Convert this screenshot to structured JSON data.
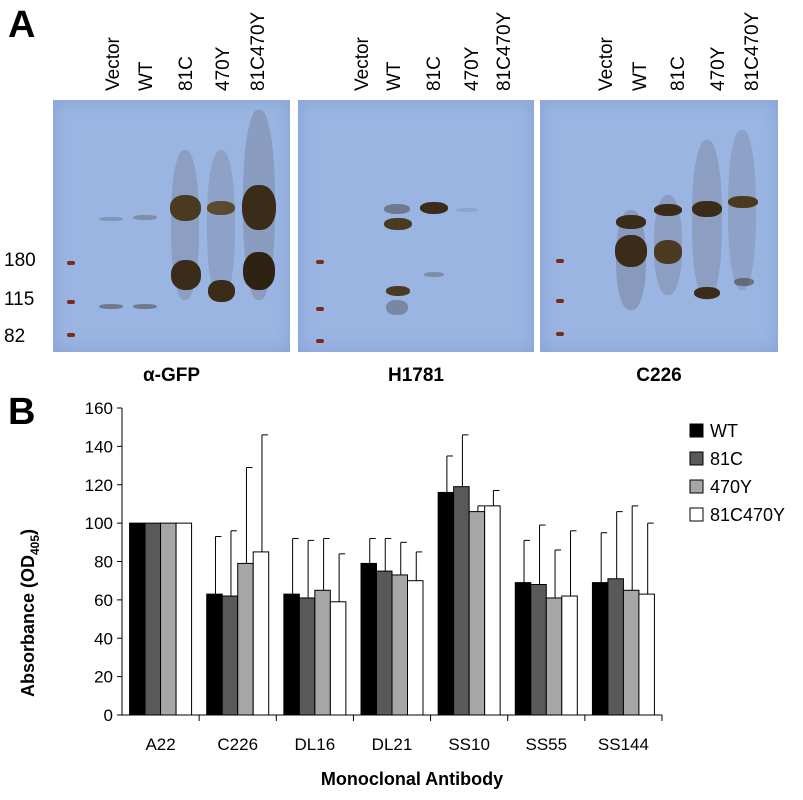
{
  "panel_a": {
    "letter": "A",
    "marker_labels": [
      "180",
      "115",
      "82"
    ],
    "blots": [
      {
        "title": "α-GFP",
        "lanes": [
          "Vector",
          "WT",
          "81C",
          "470Y",
          "81C470Y"
        ]
      },
      {
        "title": "H1781",
        "lanes": [
          "Vector",
          "WT",
          "81C",
          "470Y",
          "81C470Y"
        ]
      },
      {
        "title": "C226",
        "lanes": [
          "Vector",
          "WT",
          "81C",
          "470Y",
          "81C470Y"
        ]
      }
    ]
  },
  "panel_b": {
    "letter": "B"
  },
  "chart_data": {
    "type": "bar",
    "xlabel": "Monoclonal Antibody",
    "ylabel": "Absorbance (OD",
    "ylabel_sub": "405",
    "ylabel_close": ")",
    "ylim": [
      0,
      160
    ],
    "yticks": [
      0,
      20,
      40,
      60,
      80,
      100,
      120,
      140,
      160
    ],
    "categories": [
      "A22",
      "C226",
      "DL16",
      "DL21",
      "SS10",
      "SS55",
      "SS144"
    ],
    "legend_position": "right",
    "series": [
      {
        "name": "WT",
        "color": "#000000",
        "values": [
          100,
          63,
          63,
          79,
          116,
          69,
          69
        ],
        "errors": [
          0,
          30,
          29,
          13,
          19,
          22,
          26
        ]
      },
      {
        "name": "81C",
        "color": "#595959",
        "values": [
          100,
          62,
          61,
          75,
          119,
          68,
          71
        ],
        "errors": [
          0,
          34,
          30,
          17,
          27,
          31,
          35
        ]
      },
      {
        "name": "470Y",
        "color": "#a6a6a6",
        "values": [
          100,
          79,
          65,
          73,
          106,
          61,
          65
        ],
        "errors": [
          0,
          50,
          27,
          17,
          3,
          25,
          44
        ]
      },
      {
        "name": "81C470Y",
        "color": "#ffffff",
        "values": [
          100,
          85,
          59,
          70,
          109,
          62,
          63
        ],
        "errors": [
          0,
          61,
          25,
          15,
          8,
          34,
          37
        ]
      }
    ]
  }
}
